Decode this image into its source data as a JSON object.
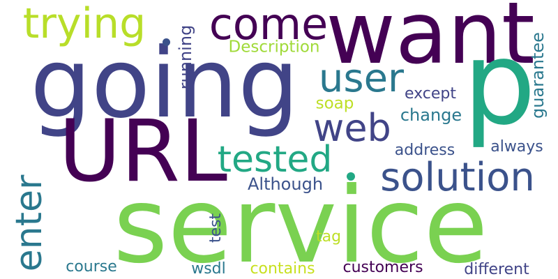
{
  "words": [
    {
      "key": "service",
      "text": "service",
      "color": "#7ad151"
    },
    {
      "key": "going",
      "text": "going",
      "color": "#414487"
    },
    {
      "key": "want",
      "text": "want",
      "color": "#440154"
    },
    {
      "key": "p",
      "text": "p",
      "color": "#22a884"
    },
    {
      "key": "URL",
      "text": "URL",
      "color": "#440154"
    },
    {
      "key": "trying",
      "text": "trying",
      "color": "#b8de29"
    },
    {
      "key": "come",
      "text": "come",
      "color": "#440154"
    },
    {
      "key": "user",
      "text": "user",
      "color": "#2a788e"
    },
    {
      "key": "web",
      "text": "web",
      "color": "#414487"
    },
    {
      "key": "tested",
      "text": "tested",
      "color": "#22a884"
    },
    {
      "key": "solution",
      "text": "solution",
      "color": "#3b528b"
    },
    {
      "key": "enter",
      "text": "enter",
      "color": "#2a788e"
    },
    {
      "key": "Description",
      "text": "Description",
      "color": "#a0da39"
    },
    {
      "key": "running",
      "text": "running",
      "color": "#414487"
    },
    {
      "key": "guarantee",
      "text": "guarantee",
      "color": "#2a788e"
    },
    {
      "key": "except",
      "text": "except",
      "color": "#414487"
    },
    {
      "key": "soap",
      "text": "soap",
      "color": "#bddf26"
    },
    {
      "key": "change",
      "text": "change",
      "color": "#2a788e"
    },
    {
      "key": "address",
      "text": "address",
      "color": "#3b528b"
    },
    {
      "key": "always",
      "text": "always",
      "color": "#3b528b"
    },
    {
      "key": "Although",
      "text": "Although",
      "color": "#3b528b"
    },
    {
      "key": "test",
      "text": "test",
      "color": "#3b528b"
    },
    {
      "key": "tag",
      "text": "tag",
      "color": "#bddf26"
    },
    {
      "key": "course",
      "text": "course",
      "color": "#2a788e"
    },
    {
      "key": "wsdl",
      "text": "wsdl",
      "color": "#2a788e"
    },
    {
      "key": "contains",
      "text": "contains",
      "color": "#c8e020"
    },
    {
      "key": "customers",
      "text": "customers",
      "color": "#440154"
    },
    {
      "key": "different",
      "text": "different",
      "color": "#414487"
    }
  ],
  "dots": [
    {
      "color": "#3b528b"
    },
    {
      "color": "#22a884"
    }
  ]
}
